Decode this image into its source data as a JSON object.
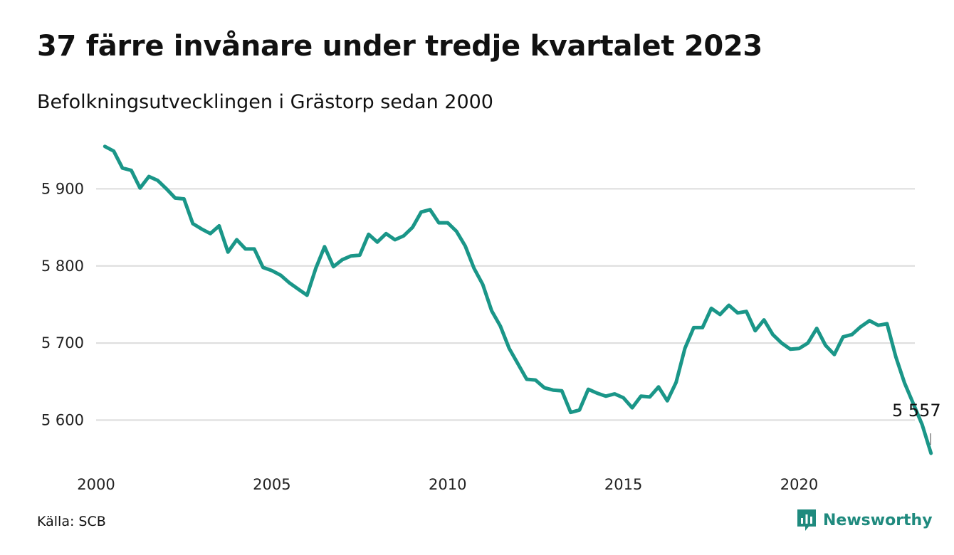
{
  "title": "37 färre invånare under tredje kvartalet 2023",
  "subtitle": "Befolkningsutvecklingen i Grästorp sedan 2000",
  "source": "Källa: SCB",
  "brand": "Newsworthy",
  "colors": {
    "line": "#1a9688",
    "grid": "#dcdcdc",
    "brand": "#1f8a7e"
  },
  "chart_data": {
    "type": "line",
    "title": "37 färre invånare under tredje kvartalet 2023",
    "subtitle": "Befolkningsutvecklingen i Grästorp sedan 2000",
    "xlabel": "",
    "ylabel": "",
    "x_ticks": [
      "2000",
      "2005",
      "2010",
      "2015",
      "2020"
    ],
    "y_ticks": [
      "5 600",
      "5 700",
      "5 800",
      "5 900"
    ],
    "ylim": [
      5545,
      5965
    ],
    "xlim": [
      2000.0,
      2024.0
    ],
    "grid": "horizontal",
    "end_label": "5 557",
    "series": [
      {
        "x": [
          2000.25,
          2000.5,
          2000.75,
          2001.0,
          2001.25,
          2001.5,
          2001.75,
          2002.0,
          2002.25,
          2002.5,
          2002.75,
          2003.0,
          2003.25,
          2003.5,
          2003.75,
          2004.0,
          2004.25,
          2004.5,
          2004.75,
          2005.0,
          2005.25,
          2005.5,
          2005.75,
          2006.0,
          2006.25,
          2006.5,
          2006.75,
          2007.0,
          2007.25,
          2007.5,
          2007.75,
          2008.0,
          2008.25,
          2008.5,
          2008.75,
          2009.0,
          2009.25,
          2009.5,
          2009.75,
          2010.0,
          2010.25,
          2010.5,
          2010.75,
          2011.0,
          2011.25,
          2011.5,
          2011.75,
          2012.0,
          2012.25,
          2012.5,
          2012.75,
          2013.0,
          2013.25,
          2013.5,
          2013.75,
          2014.0,
          2014.25,
          2014.5,
          2014.75,
          2015.0,
          2015.25,
          2015.5,
          2015.75,
          2016.0,
          2016.25,
          2016.5,
          2016.75,
          2017.0,
          2017.25,
          2017.5,
          2017.75,
          2018.0,
          2018.25,
          2018.5,
          2018.75,
          2019.0,
          2019.25,
          2019.5,
          2019.75,
          2020.0,
          2020.25,
          2020.5,
          2020.75,
          2021.0,
          2021.25,
          2021.5,
          2021.75,
          2022.0,
          2022.25,
          2022.5,
          2022.75,
          2023.0,
          2023.25,
          2023.5,
          2023.75
        ],
        "values": [
          5955,
          5949,
          5927,
          5924,
          5901,
          5916,
          5911,
          5900,
          5888,
          5887,
          5855,
          5848,
          5842,
          5852,
          5818,
          5834,
          5822,
          5822,
          5798,
          5794,
          5788,
          5778,
          5770,
          5762,
          5797,
          5825,
          5799,
          5808,
          5813,
          5814,
          5841,
          5831,
          5842,
          5834,
          5839,
          5850,
          5870,
          5873,
          5856,
          5856,
          5845,
          5826,
          5797,
          5776,
          5742,
          5722,
          5693,
          5673,
          5653,
          5652,
          5642,
          5639,
          5638,
          5610,
          5613,
          5640,
          5635,
          5631,
          5634,
          5629,
          5616,
          5631,
          5630,
          5643,
          5625,
          5649,
          5693,
          5720,
          5720,
          5745,
          5737,
          5749,
          5739,
          5741,
          5716,
          5730,
          5711,
          5700,
          5692,
          5693,
          5700,
          5719,
          5697,
          5685,
          5708,
          5711,
          5721,
          5729,
          5723,
          5725,
          5682,
          5648,
          5621,
          5594,
          5557
        ]
      }
    ]
  }
}
